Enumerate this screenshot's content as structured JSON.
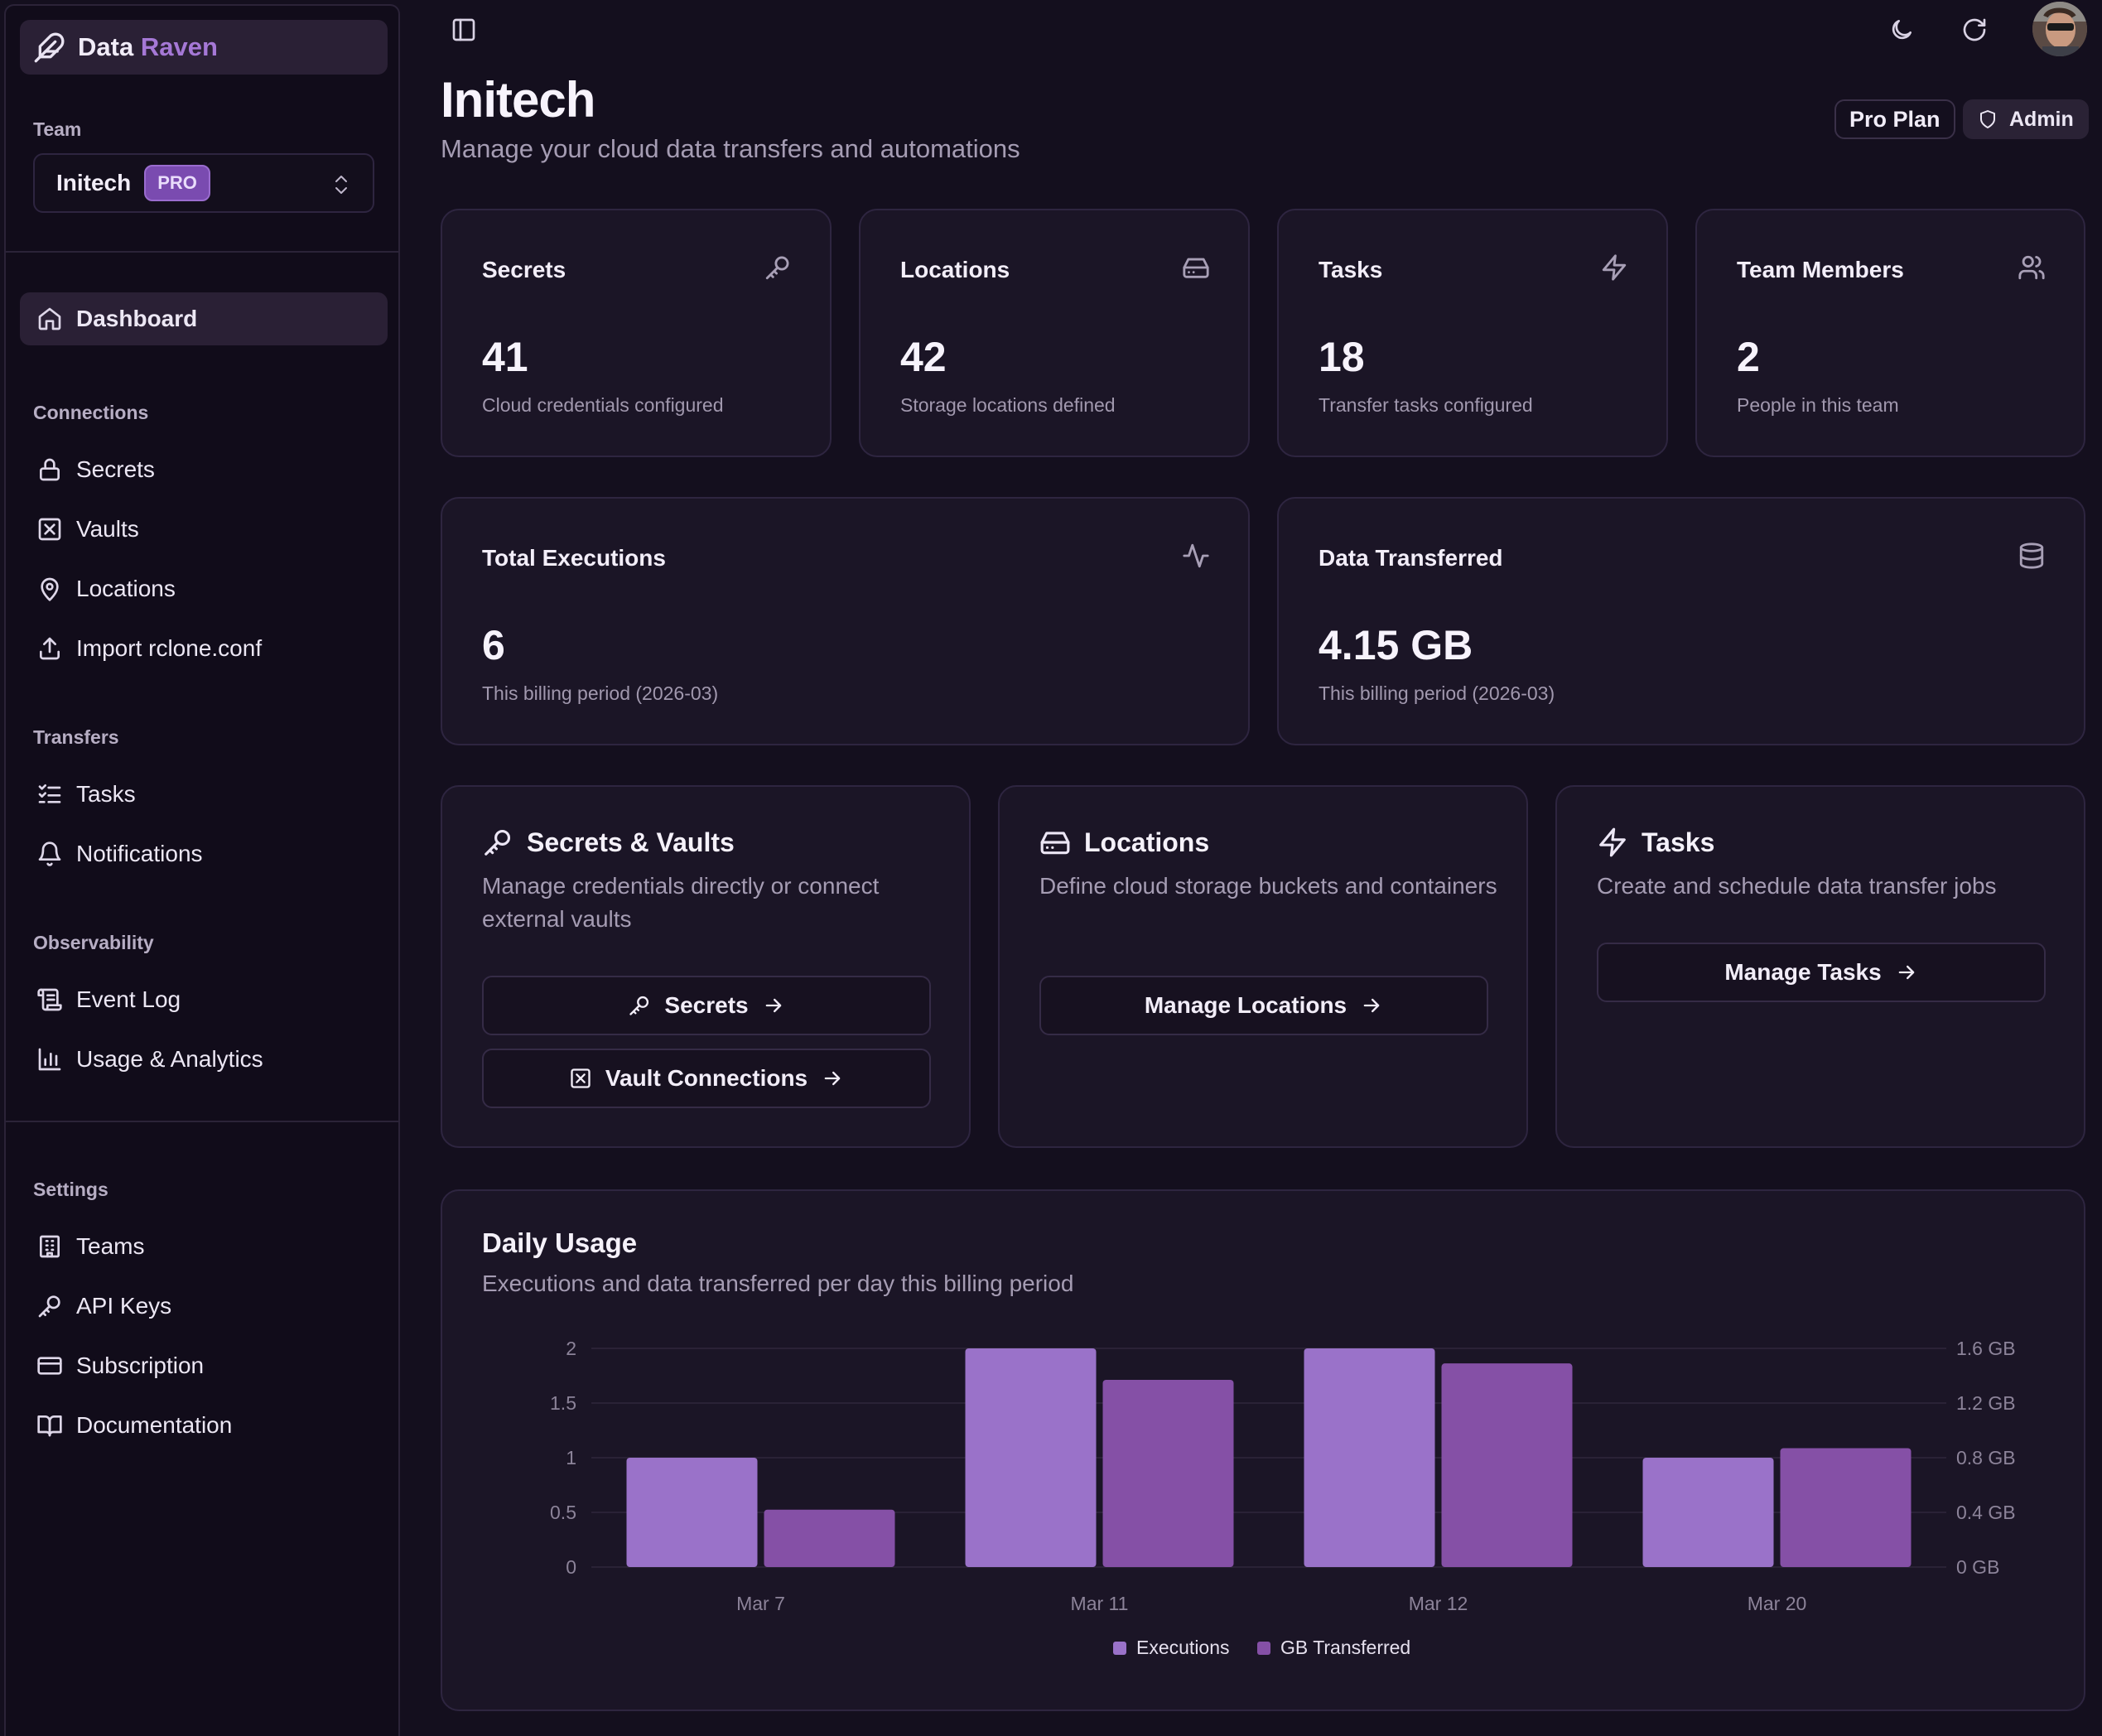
{
  "brand": {
    "name_part1": "Data",
    "name_part2": "Raven"
  },
  "team": {
    "section_label": "Team",
    "name": "Initech",
    "badge": "PRO"
  },
  "nav": {
    "dashboard": "Dashboard",
    "connections_label": "Connections",
    "secrets": "Secrets",
    "vaults": "Vaults",
    "locations": "Locations",
    "import": "Import rclone.conf",
    "transfers_label": "Transfers",
    "tasks": "Tasks",
    "notifications": "Notifications",
    "observability_label": "Observability",
    "event_log": "Event Log",
    "usage": "Usage & Analytics",
    "settings_label": "Settings",
    "teams": "Teams",
    "api_keys": "API Keys",
    "subscription": "Subscription",
    "documentation": "Documentation"
  },
  "header": {
    "title": "Initech",
    "subtitle": "Manage your cloud data transfers and automations",
    "plan_badge": "Pro Plan",
    "role_badge": "Admin"
  },
  "stats": {
    "secrets": {
      "title": "Secrets",
      "value": "41",
      "desc": "Cloud credentials configured",
      "icon": "key-icon"
    },
    "locations": {
      "title": "Locations",
      "value": "42",
      "desc": "Storage locations defined",
      "icon": "hard-drive-icon"
    },
    "tasks": {
      "title": "Tasks",
      "value": "18",
      "desc": "Transfer tasks configured",
      "icon": "zap-icon"
    },
    "members": {
      "title": "Team Members",
      "value": "2",
      "desc": "People in this team",
      "icon": "users-icon"
    },
    "executions": {
      "title": "Total Executions",
      "value": "6",
      "desc": "This billing period (2026-03)",
      "icon": "activity-icon"
    },
    "transferred": {
      "title": "Data Transferred",
      "value": "4.15 GB",
      "desc": "This billing period (2026-03)",
      "icon": "database-icon"
    }
  },
  "features": {
    "secrets_vaults": {
      "title": "Secrets & Vaults",
      "desc": "Manage credentials directly or connect external vaults",
      "btn_secrets": "Secrets",
      "btn_vaults": "Vault Connections"
    },
    "locations": {
      "title": "Locations",
      "desc": "Define cloud storage buckets and containers",
      "btn": "Manage Locations"
    },
    "tasks": {
      "title": "Tasks",
      "desc": "Create and schedule data transfer jobs",
      "btn": "Manage Tasks"
    }
  },
  "usage": {
    "title": "Daily Usage",
    "subtitle": "Executions and data transferred per day this billing period"
  },
  "colors": {
    "executions": "#9a72c9",
    "gb": "#8550a6",
    "background": "#140f1e",
    "card": "#1b1526",
    "accent": "#a578d6"
  },
  "chart_data": {
    "type": "bar",
    "categories": [
      "Mar 7",
      "Mar 11",
      "Mar 12",
      "Mar 20"
    ],
    "series": [
      {
        "name": "Executions",
        "axis": "left",
        "values": [
          1,
          2,
          2,
          1
        ]
      },
      {
        "name": "GB Transferred",
        "axis": "right",
        "values": [
          0.42,
          1.37,
          1.49,
          0.87
        ]
      }
    ],
    "y_left": {
      "ticks": [
        "0",
        "0.5",
        "1",
        "1.5",
        "2"
      ],
      "range": [
        0,
        2
      ]
    },
    "y_right": {
      "ticks": [
        "0 GB",
        "0.4 GB",
        "0.8 GB",
        "1.2 GB",
        "1.6 GB"
      ],
      "range": [
        0,
        1.6
      ]
    },
    "grid": true,
    "legend": "bottom"
  }
}
